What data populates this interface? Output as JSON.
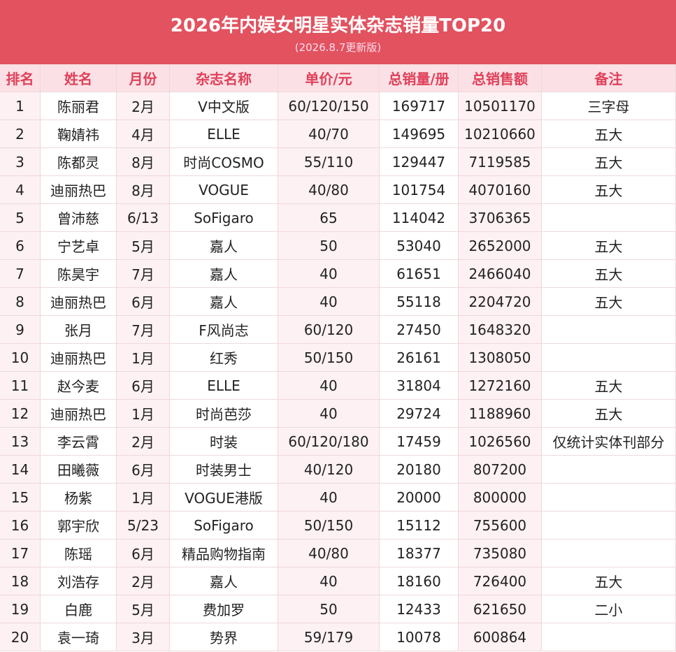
{
  "header": {
    "title": "2026年内娱女明星实体杂志销量TOP20",
    "subtitle": "(2026.8.7更新版)"
  },
  "table": {
    "columns": [
      "排名",
      "姓名",
      "月份",
      "杂志名称",
      "单价/元",
      "总销量/册",
      "总销售额",
      "备注"
    ],
    "rows": [
      [
        "1",
        "陈丽君",
        "2月",
        "V中文版",
        "60/120/150",
        "169717",
        "10501170",
        "三字母"
      ],
      [
        "2",
        "鞠婧祎",
        "4月",
        "ELLE",
        "40/70",
        "149695",
        "10210660",
        "五大"
      ],
      [
        "3",
        "陈都灵",
        "8月",
        "时尚COSMO",
        "55/110",
        "129447",
        "7119585",
        "五大"
      ],
      [
        "4",
        "迪丽热巴",
        "8月",
        "VOGUE",
        "40/80",
        "101754",
        "4070160",
        "五大"
      ],
      [
        "5",
        "曾沛慈",
        "6/13",
        "SoFigaro",
        "65",
        "114042",
        "3706365",
        ""
      ],
      [
        "6",
        "宁艺卓",
        "5月",
        "嘉人",
        "50",
        "53040",
        "2652000",
        "五大"
      ],
      [
        "7",
        "陈昊宇",
        "7月",
        "嘉人",
        "40",
        "61651",
        "2466040",
        "五大"
      ],
      [
        "8",
        "迪丽热巴",
        "6月",
        "嘉人",
        "40",
        "55118",
        "2204720",
        "五大"
      ],
      [
        "9",
        "张月",
        "7月",
        "F风尚志",
        "60/120",
        "27450",
        "1648320",
        ""
      ],
      [
        "10",
        "迪丽热巴",
        "1月",
        "红秀",
        "50/150",
        "26161",
        "1308050",
        ""
      ],
      [
        "11",
        "赵今麦",
        "6月",
        "ELLE",
        "40",
        "31804",
        "1272160",
        "五大"
      ],
      [
        "12",
        "迪丽热巴",
        "1月",
        "时尚芭莎",
        "40",
        "29724",
        "1188960",
        "五大"
      ],
      [
        "13",
        "李云霄",
        "2月",
        "时装",
        "60/120/180",
        "17459",
        "1026560",
        "仅统计实体刊部分"
      ],
      [
        "14",
        "田曦薇",
        "6月",
        "时装男士",
        "40/120",
        "20180",
        "807200",
        ""
      ],
      [
        "15",
        "杨紫",
        "1月",
        "VOGUE港版",
        "40",
        "20000",
        "800000",
        ""
      ],
      [
        "16",
        "郭宇欣",
        "5/23",
        "SoFigaro",
        "50/150",
        "15112",
        "755600",
        ""
      ],
      [
        "17",
        "陈瑶",
        "6月",
        "精品购物指南",
        "40/80",
        "18377",
        "735080",
        ""
      ],
      [
        "18",
        "刘浩存",
        "2月",
        "嘉人",
        "40",
        "18160",
        "726400",
        "五大"
      ],
      [
        "19",
        "白鹿",
        "5月",
        "费加罗",
        "50",
        "12433",
        "621650",
        "二小"
      ],
      [
        "20",
        "袁一琦",
        "3月",
        "势界",
        "59/179",
        "10078",
        "600864",
        ""
      ]
    ]
  }
}
